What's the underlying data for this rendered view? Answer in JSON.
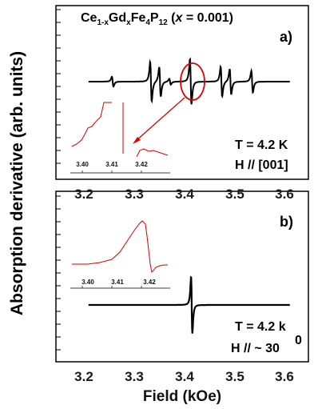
{
  "chart_data": [
    {
      "type": "line",
      "panel": "a",
      "title": "Ce1-xGdxFe4P12 (x = 0.001)",
      "panel_label": "a)",
      "xlabel": "Field (kOe)",
      "ylabel": "Absorption derivative (arb. units)",
      "xlim": [
        3.15,
        3.65
      ],
      "xticks": [
        "3.2",
        "3.3",
        "3.4",
        "3.5",
        "3.6"
      ],
      "conditions": [
        "T = 4.2 K",
        "H // [001]"
      ],
      "series": [
        {
          "color": "#000000",
          "lines": [
            {
              "center": 3.334,
              "amp": 1.0
            },
            {
              "center": 3.352,
              "amp": 0.75
            },
            {
              "center": 3.413,
              "amp": 1.15
            },
            {
              "center": 3.474,
              "amp": 0.75
            },
            {
              "center": 3.492,
              "amp": 0.65
            },
            {
              "center": 3.535,
              "amp": 0.55
            },
            {
              "center": 3.258,
              "amp": 0.25
            },
            {
              "center": 3.372,
              "amp": 0.15
            }
          ]
        }
      ],
      "inset": {
        "xlim": [
          3.395,
          3.428
        ],
        "xticks": [
          "3.40",
          "3.41",
          "3.42"
        ],
        "color": "#d40000"
      }
    },
    {
      "type": "line",
      "panel": "b",
      "panel_label": "b)",
      "xlim": [
        3.15,
        3.65
      ],
      "xticks": [
        "3.2",
        "3.3",
        "3.4",
        "3.5",
        "3.6"
      ],
      "conditions": [
        "T = 4.2 k",
        "H // ~ 30"
      ],
      "superscript": "0",
      "series": [
        {
          "color": "#000000",
          "lines": [
            {
              "center": 3.415,
              "amp": 1.0
            }
          ]
        }
      ],
      "inset": {
        "xlim": [
          3.395,
          3.428
        ],
        "xticks": [
          "3.40",
          "3.41",
          "3.42"
        ],
        "color": "#d40000"
      }
    }
  ]
}
